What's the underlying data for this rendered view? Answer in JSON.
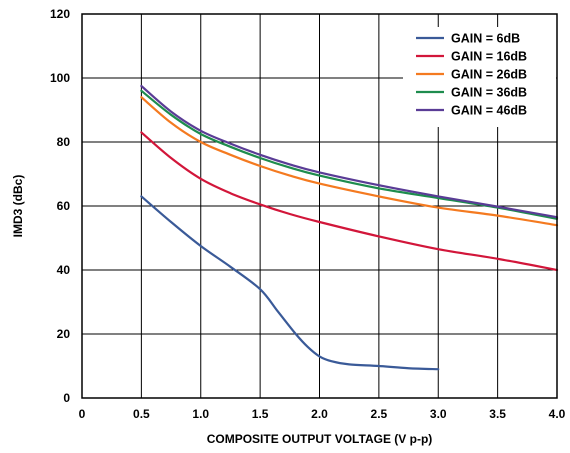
{
  "chart_data": {
    "type": "line",
    "xlabel": "COMPOSITE OUTPUT VOLTAGE (V p-p)",
    "ylabel": "IMD3 (dBc)",
    "xlim": [
      0,
      4.0
    ],
    "ylim": [
      0,
      120
    ],
    "x_ticks": [
      {
        "value": 0,
        "label": "0"
      },
      {
        "value": 0.5,
        "label": "0.5"
      },
      {
        "value": 1.0,
        "label": "1.0"
      },
      {
        "value": 1.5,
        "label": "1.5"
      },
      {
        "value": 2.0,
        "label": "2.0"
      },
      {
        "value": 2.5,
        "label": "2.5"
      },
      {
        "value": 3.0,
        "label": "3.0"
      },
      {
        "value": 3.5,
        "label": "3.5"
      },
      {
        "value": 4.0,
        "label": "4.0"
      }
    ],
    "y_ticks": [
      {
        "value": 0,
        "label": "0"
      },
      {
        "value": 20,
        "label": "20"
      },
      {
        "value": 40,
        "label": "40"
      },
      {
        "value": 60,
        "label": "60"
      },
      {
        "value": 80,
        "label": "80"
      },
      {
        "value": 100,
        "label": "100"
      },
      {
        "value": 120,
        "label": "120"
      }
    ],
    "grid": true,
    "legend_position": "top-right",
    "series": [
      {
        "name": "GAIN = 6dB",
        "color": "#3a5a98",
        "points": [
          [
            0.5,
            63
          ],
          [
            0.75,
            55
          ],
          [
            1.0,
            47.5
          ],
          [
            1.25,
            41
          ],
          [
            1.5,
            34
          ],
          [
            1.65,
            27
          ],
          [
            1.8,
            20
          ],
          [
            1.9,
            16
          ],
          [
            2.0,
            13
          ],
          [
            2.1,
            11.5
          ],
          [
            2.25,
            10.5
          ],
          [
            2.5,
            10
          ],
          [
            2.75,
            9.3
          ],
          [
            3.0,
            9
          ]
        ]
      },
      {
        "name": "GAIN = 16dB",
        "color": "#d2163a",
        "points": [
          [
            0.5,
            83
          ],
          [
            0.75,
            75
          ],
          [
            1.0,
            68.5
          ],
          [
            1.25,
            64
          ],
          [
            1.5,
            60.5
          ],
          [
            1.75,
            57.5
          ],
          [
            2.0,
            55
          ],
          [
            2.5,
            50.5
          ],
          [
            3.0,
            46.5
          ],
          [
            3.5,
            43.5
          ],
          [
            4.0,
            40
          ]
        ]
      },
      {
        "name": "GAIN = 26dB",
        "color": "#f47a20",
        "points": [
          [
            0.5,
            94
          ],
          [
            0.75,
            86
          ],
          [
            1.0,
            80
          ],
          [
            1.25,
            76
          ],
          [
            1.5,
            72.5
          ],
          [
            1.75,
            69.5
          ],
          [
            2.0,
            67
          ],
          [
            2.5,
            63
          ],
          [
            3.0,
            59.5
          ],
          [
            3.5,
            57
          ],
          [
            4.0,
            54
          ]
        ]
      },
      {
        "name": "GAIN = 36dB",
        "color": "#1e8c4e",
        "points": [
          [
            0.5,
            96
          ],
          [
            0.75,
            88.5
          ],
          [
            1.0,
            82.5
          ],
          [
            1.25,
            78.5
          ],
          [
            1.5,
            75
          ],
          [
            1.75,
            72
          ],
          [
            2.0,
            69.5
          ],
          [
            2.5,
            65.5
          ],
          [
            3.0,
            62.5
          ],
          [
            3.5,
            59.5
          ],
          [
            4.0,
            56
          ]
        ]
      },
      {
        "name": "GAIN = 46dB",
        "color": "#5a3c96",
        "points": [
          [
            0.5,
            97.5
          ],
          [
            0.75,
            89.5
          ],
          [
            1.0,
            83.5
          ],
          [
            1.25,
            79.5
          ],
          [
            1.5,
            76
          ],
          [
            1.75,
            73
          ],
          [
            2.0,
            70.5
          ],
          [
            2.5,
            66.5
          ],
          [
            3.0,
            63
          ],
          [
            3.5,
            59.8
          ],
          [
            4.0,
            56.5
          ]
        ]
      }
    ]
  }
}
